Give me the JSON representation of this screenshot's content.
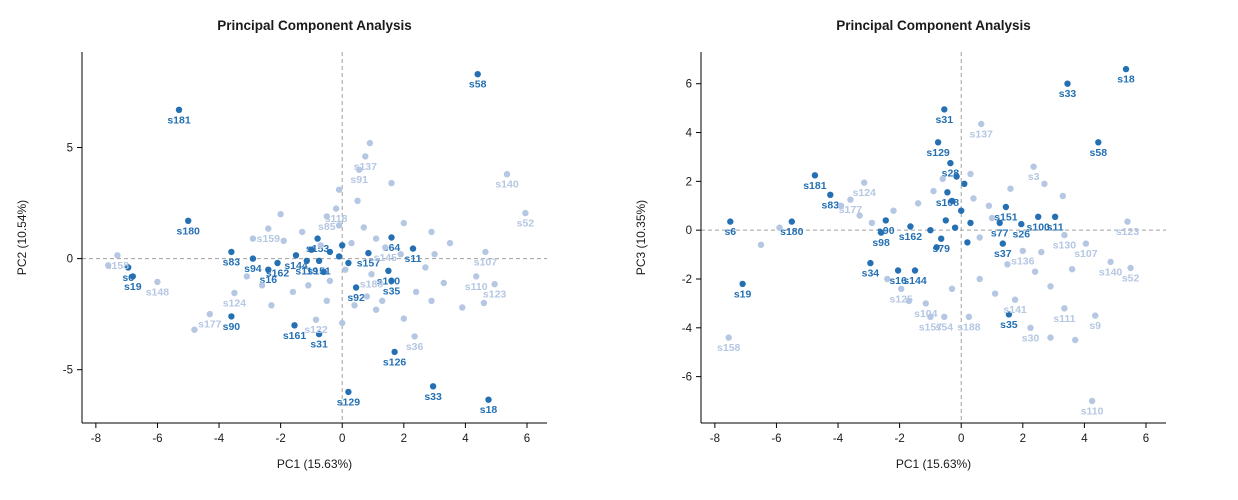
{
  "page": {
    "background": "#ffffff"
  },
  "colors": {
    "dark_point": "#2470b3",
    "light_point": "#b5c7e3",
    "axis": "#000000",
    "tick_text": "#1a1a1a",
    "grid": "#a0a0a0",
    "title": "#1a1a1a"
  },
  "chart_data": [
    {
      "type": "scatter",
      "title": "Principal Component Analysis",
      "xlabel": "PC1 (15.63%)",
      "ylabel": "PC2 (10.54%)",
      "xlim": [
        -8.45,
        6.65
      ],
      "ylim": [
        -7.4,
        9.3
      ],
      "xticks": [
        -8,
        -6,
        -4,
        -2,
        0,
        2,
        4,
        6
      ],
      "yticks": [
        -5,
        0,
        5
      ],
      "grid": {
        "zero_lines": true,
        "style": "dashed"
      },
      "legend": null,
      "series": [
        {
          "name": "group-dark",
          "color_key": "dark_point",
          "points": [
            {
              "x": 4.4,
              "y": 8.3,
              "label": "s58"
            },
            {
              "x": -5.3,
              "y": 6.7,
              "label": "s181"
            },
            {
              "x": -5.0,
              "y": 1.7,
              "label": "s180"
            },
            {
              "x": -3.6,
              "y": 0.3,
              "label": "s83"
            },
            {
              "x": -2.9,
              "y": 0.0,
              "label": "s94"
            },
            {
              "x": -2.1,
              "y": -0.2,
              "label": "s162"
            },
            {
              "x": -2.4,
              "y": -0.5,
              "label": "s16"
            },
            {
              "x": -1.5,
              "y": 0.15,
              "label": "s144"
            },
            {
              "x": -1.15,
              "y": -0.1,
              "label": "s119"
            },
            {
              "x": -0.75,
              "y": -0.1,
              "label": "s151"
            },
            {
              "x": -0.8,
              "y": 0.9,
              "label": "s153"
            },
            {
              "x": 0.85,
              "y": 0.25,
              "label": "s157"
            },
            {
              "x": -6.95,
              "y": -0.4,
              "label": "s6"
            },
            {
              "x": -6.8,
              "y": -0.8,
              "label": "s19"
            },
            {
              "x": 1.5,
              "y": -0.55,
              "label": "s100"
            },
            {
              "x": 1.6,
              "y": -1.0,
              "label": "s35"
            },
            {
              "x": 2.3,
              "y": 0.45,
              "label": "s11"
            },
            {
              "x": 1.6,
              "y": 0.95,
              "label": "s64"
            },
            {
              "x": 0.45,
              "y": -1.3,
              "label": "s92"
            },
            {
              "x": -3.6,
              "y": -2.6,
              "label": "s90"
            },
            {
              "x": -1.55,
              "y": -3.0,
              "label": "s161"
            },
            {
              "x": -0.75,
              "y": -3.4,
              "label": "s31"
            },
            {
              "x": 1.7,
              "y": -4.2,
              "label": "s126"
            },
            {
              "x": 0.2,
              "y": -6.0,
              "label": "s129"
            },
            {
              "x": 2.95,
              "y": -5.75,
              "label": "s33"
            },
            {
              "x": 4.75,
              "y": -6.35,
              "label": "s18"
            },
            {
              "x": -0.4,
              "y": 0.3
            },
            {
              "x": -0.1,
              "y": 0.1
            },
            {
              "x": 0.2,
              "y": -0.2
            },
            {
              "x": -0.6,
              "y": -0.6
            },
            {
              "x": 0.0,
              "y": 0.6
            },
            {
              "x": -1.0,
              "y": 0.4
            }
          ]
        },
        {
          "name": "group-light",
          "color_key": "light_point",
          "points": [
            {
              "x": 0.75,
              "y": 4.6,
              "label": "s137"
            },
            {
              "x": 0.55,
              "y": 4.0,
              "label": "s91"
            },
            {
              "x": 5.35,
              "y": 3.8,
              "label": "s140"
            },
            {
              "x": 5.95,
              "y": 2.05,
              "label": "s52"
            },
            {
              "x": -0.2,
              "y": 2.25,
              "label": "s118"
            },
            {
              "x": -0.5,
              "y": 1.9,
              "label": "s85"
            },
            {
              "x": -2.4,
              "y": 1.35,
              "label": "s159"
            },
            {
              "x": -7.3,
              "y": 0.15,
              "label": "s158"
            },
            {
              "x": -6.0,
              "y": -1.05,
              "label": "s148"
            },
            {
              "x": 4.65,
              "y": 0.3,
              "label": "s107"
            },
            {
              "x": 4.35,
              "y": -0.8,
              "label": "s110"
            },
            {
              "x": 4.95,
              "y": -1.15,
              "label": "s123"
            },
            {
              "x": 0.95,
              "y": -0.7,
              "label": "s188"
            },
            {
              "x": -3.5,
              "y": -1.55,
              "label": "s124"
            },
            {
              "x": -4.3,
              "y": -2.5,
              "label": "s177"
            },
            {
              "x": -0.85,
              "y": -2.75,
              "label": "s122"
            },
            {
              "x": 2.35,
              "y": -3.5,
              "label": "s36"
            },
            {
              "x": 1.4,
              "y": 0.5,
              "label": "s145"
            },
            {
              "x": 0.9,
              "y": 5.2
            },
            {
              "x": 1.6,
              "y": 3.4
            },
            {
              "x": -0.1,
              "y": 3.1
            },
            {
              "x": 2.0,
              "y": 1.6
            },
            {
              "x": 2.9,
              "y": 1.2
            },
            {
              "x": 3.5,
              "y": 0.7
            },
            {
              "x": 2.7,
              "y": -0.4
            },
            {
              "x": 3.3,
              "y": -1.1
            },
            {
              "x": 2.9,
              "y": -1.9
            },
            {
              "x": 3.9,
              "y": -2.2
            },
            {
              "x": 4.6,
              "y": -2.0
            },
            {
              "x": 1.1,
              "y": -2.3
            },
            {
              "x": 0.4,
              "y": -2.1
            },
            {
              "x": -0.5,
              "y": -1.9
            },
            {
              "x": -1.6,
              "y": -1.5
            },
            {
              "x": -2.6,
              "y": -1.2
            },
            {
              "x": -3.1,
              "y": -0.8
            },
            {
              "x": -1.9,
              "y": 0.8
            },
            {
              "x": -1.3,
              "y": 1.2
            },
            {
              "x": -0.7,
              "y": 0.6
            },
            {
              "x": 0.3,
              "y": 0.7
            },
            {
              "x": 0.7,
              "y": 1.4
            },
            {
              "x": 1.1,
              "y": 0.9
            },
            {
              "x": 0.1,
              "y": -0.5
            },
            {
              "x": -0.4,
              "y": -1.0
            },
            {
              "x": 0.8,
              "y": -1.7
            },
            {
              "x": 2.0,
              "y": -2.7
            },
            {
              "x": -4.8,
              "y": -3.2
            },
            {
              "x": -2.3,
              "y": -2.1
            },
            {
              "x": -7.6,
              "y": -0.3
            },
            {
              "x": -0.1,
              "y": 1.5
            },
            {
              "x": 0.5,
              "y": 2.6
            },
            {
              "x": 1.9,
              "y": 0.2
            },
            {
              "x": 2.4,
              "y": -1.5
            },
            {
              "x": -1.1,
              "y": -1.2
            },
            {
              "x": 0.0,
              "y": -2.9
            },
            {
              "x": 1.3,
              "y": -1.9
            },
            {
              "x": 3.0,
              "y": 0.2
            },
            {
              "x": -2.9,
              "y": 0.9
            },
            {
              "x": -2.0,
              "y": 2.0
            }
          ]
        }
      ]
    },
    {
      "type": "scatter",
      "title": "Principal Component Analysis",
      "xlabel": "PC1 (15.63%)",
      "ylabel": "PC3 (10.35%)",
      "xlim": [
        -8.45,
        6.65
      ],
      "ylim": [
        -7.9,
        7.3
      ],
      "xticks": [
        -8,
        -6,
        -4,
        -2,
        0,
        2,
        4,
        6
      ],
      "yticks": [
        -6,
        -4,
        -2,
        0,
        2,
        4,
        6
      ],
      "grid": {
        "zero_lines": true,
        "style": "dashed"
      },
      "legend": null,
      "series": [
        {
          "name": "group-dark",
          "color_key": "dark_point",
          "points": [
            {
              "x": 5.35,
              "y": 6.6,
              "label": "s18"
            },
            {
              "x": 3.45,
              "y": 6.0,
              "label": "s33"
            },
            {
              "x": -0.55,
              "y": 4.95,
              "label": "s31"
            },
            {
              "x": -0.75,
              "y": 3.6,
              "label": "s129"
            },
            {
              "x": 4.45,
              "y": 3.6,
              "label": "s58"
            },
            {
              "x": -0.35,
              "y": 2.75,
              "label": "s28"
            },
            {
              "x": -4.75,
              "y": 2.25,
              "label": "s181"
            },
            {
              "x": -4.25,
              "y": 1.45,
              "label": "s83"
            },
            {
              "x": -5.5,
              "y": 0.35,
              "label": "s180"
            },
            {
              "x": -7.5,
              "y": 0.35,
              "label": "s6"
            },
            {
              "x": -7.1,
              "y": -2.2,
              "label": "s19"
            },
            {
              "x": -2.45,
              "y": 0.4,
              "label": "s90"
            },
            {
              "x": -2.6,
              "y": -0.1,
              "label": "s98"
            },
            {
              "x": -2.95,
              "y": -1.35,
              "label": "s34"
            },
            {
              "x": -2.05,
              "y": -1.65,
              "label": "s16"
            },
            {
              "x": -1.5,
              "y": -1.65,
              "label": "s144"
            },
            {
              "x": 1.45,
              "y": 0.95,
              "label": "s151"
            },
            {
              "x": 2.5,
              "y": 0.55,
              "label": "s100"
            },
            {
              "x": 3.05,
              "y": 0.55,
              "label": "s11"
            },
            {
              "x": 1.25,
              "y": 0.3,
              "label": "s77"
            },
            {
              "x": 1.95,
              "y": 0.25,
              "label": "s26"
            },
            {
              "x": -1.65,
              "y": 0.15,
              "label": "s162"
            },
            {
              "x": -0.65,
              "y": -0.35,
              "label": "s79"
            },
            {
              "x": 1.35,
              "y": -0.55,
              "label": "s37"
            },
            {
              "x": 1.55,
              "y": -3.45,
              "label": "s35"
            },
            {
              "x": -0.45,
              "y": 1.55,
              "label": "s108"
            },
            {
              "x": -0.15,
              "y": 2.2
            },
            {
              "x": 0.1,
              "y": 1.9
            },
            {
              "x": -0.3,
              "y": 1.2
            },
            {
              "x": 0.0,
              "y": 0.8
            },
            {
              "x": -0.5,
              "y": 0.4
            },
            {
              "x": -0.2,
              "y": 0.1
            },
            {
              "x": 0.3,
              "y": 0.3
            },
            {
              "x": -1.0,
              "y": 0.0
            },
            {
              "x": -0.8,
              "y": -0.7
            },
            {
              "x": 0.2,
              "y": -0.5
            }
          ]
        },
        {
          "name": "group-light",
          "color_key": "light_point",
          "points": [
            {
              "x": 0.65,
              "y": 4.35,
              "label": "s137"
            },
            {
              "x": 2.35,
              "y": 2.6,
              "label": "s3"
            },
            {
              "x": -3.15,
              "y": 1.95,
              "label": "s124"
            },
            {
              "x": -3.6,
              "y": 1.25,
              "label": "s177"
            },
            {
              "x": 5.4,
              "y": 0.35,
              "label": "s123"
            },
            {
              "x": 4.05,
              "y": -0.55,
              "label": "s107"
            },
            {
              "x": 4.85,
              "y": -1.3,
              "label": "s140"
            },
            {
              "x": 5.5,
              "y": -1.55,
              "label": "s52"
            },
            {
              "x": 2.0,
              "y": -0.85,
              "label": "s136"
            },
            {
              "x": 3.35,
              "y": -0.2,
              "label": "s130"
            },
            {
              "x": -1.95,
              "y": -2.4,
              "label": "s125"
            },
            {
              "x": -1.15,
              "y": -3.0,
              "label": "s104"
            },
            {
              "x": 1.75,
              "y": -2.85,
              "label": "s141"
            },
            {
              "x": 3.35,
              "y": -3.2,
              "label": "s111"
            },
            {
              "x": 4.35,
              "y": -3.5,
              "label": "s9"
            },
            {
              "x": -7.55,
              "y": -4.4,
              "label": "s158"
            },
            {
              "x": 4.25,
              "y": -7.0,
              "label": "s110"
            },
            {
              "x": 2.25,
              "y": -4.0,
              "label": "s30"
            },
            {
              "x": -1.0,
              "y": -3.55,
              "label": "s157"
            },
            {
              "x": -0.55,
              "y": -3.55,
              "label": "s54"
            },
            {
              "x": 0.25,
              "y": -3.55,
              "label": "s188"
            },
            {
              "x": -3.9,
              "y": 1.0
            },
            {
              "x": -3.3,
              "y": 0.6
            },
            {
              "x": -2.9,
              "y": 0.3
            },
            {
              "x": -2.2,
              "y": 0.8
            },
            {
              "x": -1.4,
              "y": 1.1
            },
            {
              "x": -0.9,
              "y": 1.6
            },
            {
              "x": 0.4,
              "y": 1.3
            },
            {
              "x": 0.9,
              "y": 1.0
            },
            {
              "x": 1.0,
              "y": 0.5
            },
            {
              "x": 0.6,
              "y": -0.3
            },
            {
              "x": 1.5,
              "y": -1.4
            },
            {
              "x": 2.4,
              "y": -1.7
            },
            {
              "x": 2.9,
              "y": -2.3
            },
            {
              "x": 3.6,
              "y": -1.6
            },
            {
              "x": 2.6,
              "y": -0.9
            },
            {
              "x": -2.4,
              "y": -2.0
            },
            {
              "x": -1.7,
              "y": -2.9
            },
            {
              "x": -0.3,
              "y": -2.4
            },
            {
              "x": 0.6,
              "y": -2.0
            },
            {
              "x": 1.1,
              "y": -2.6
            },
            {
              "x": 2.9,
              "y": -4.4
            },
            {
              "x": 3.7,
              "y": -4.5
            },
            {
              "x": 0.3,
              "y": 2.3
            },
            {
              "x": -0.6,
              "y": 2.1
            },
            {
              "x": 1.6,
              "y": 1.7
            },
            {
              "x": 2.7,
              "y": 1.9
            },
            {
              "x": 3.3,
              "y": 1.4
            },
            {
              "x": -5.9,
              "y": 0.1
            },
            {
              "x": -6.5,
              "y": -0.6
            }
          ]
        }
      ]
    }
  ]
}
